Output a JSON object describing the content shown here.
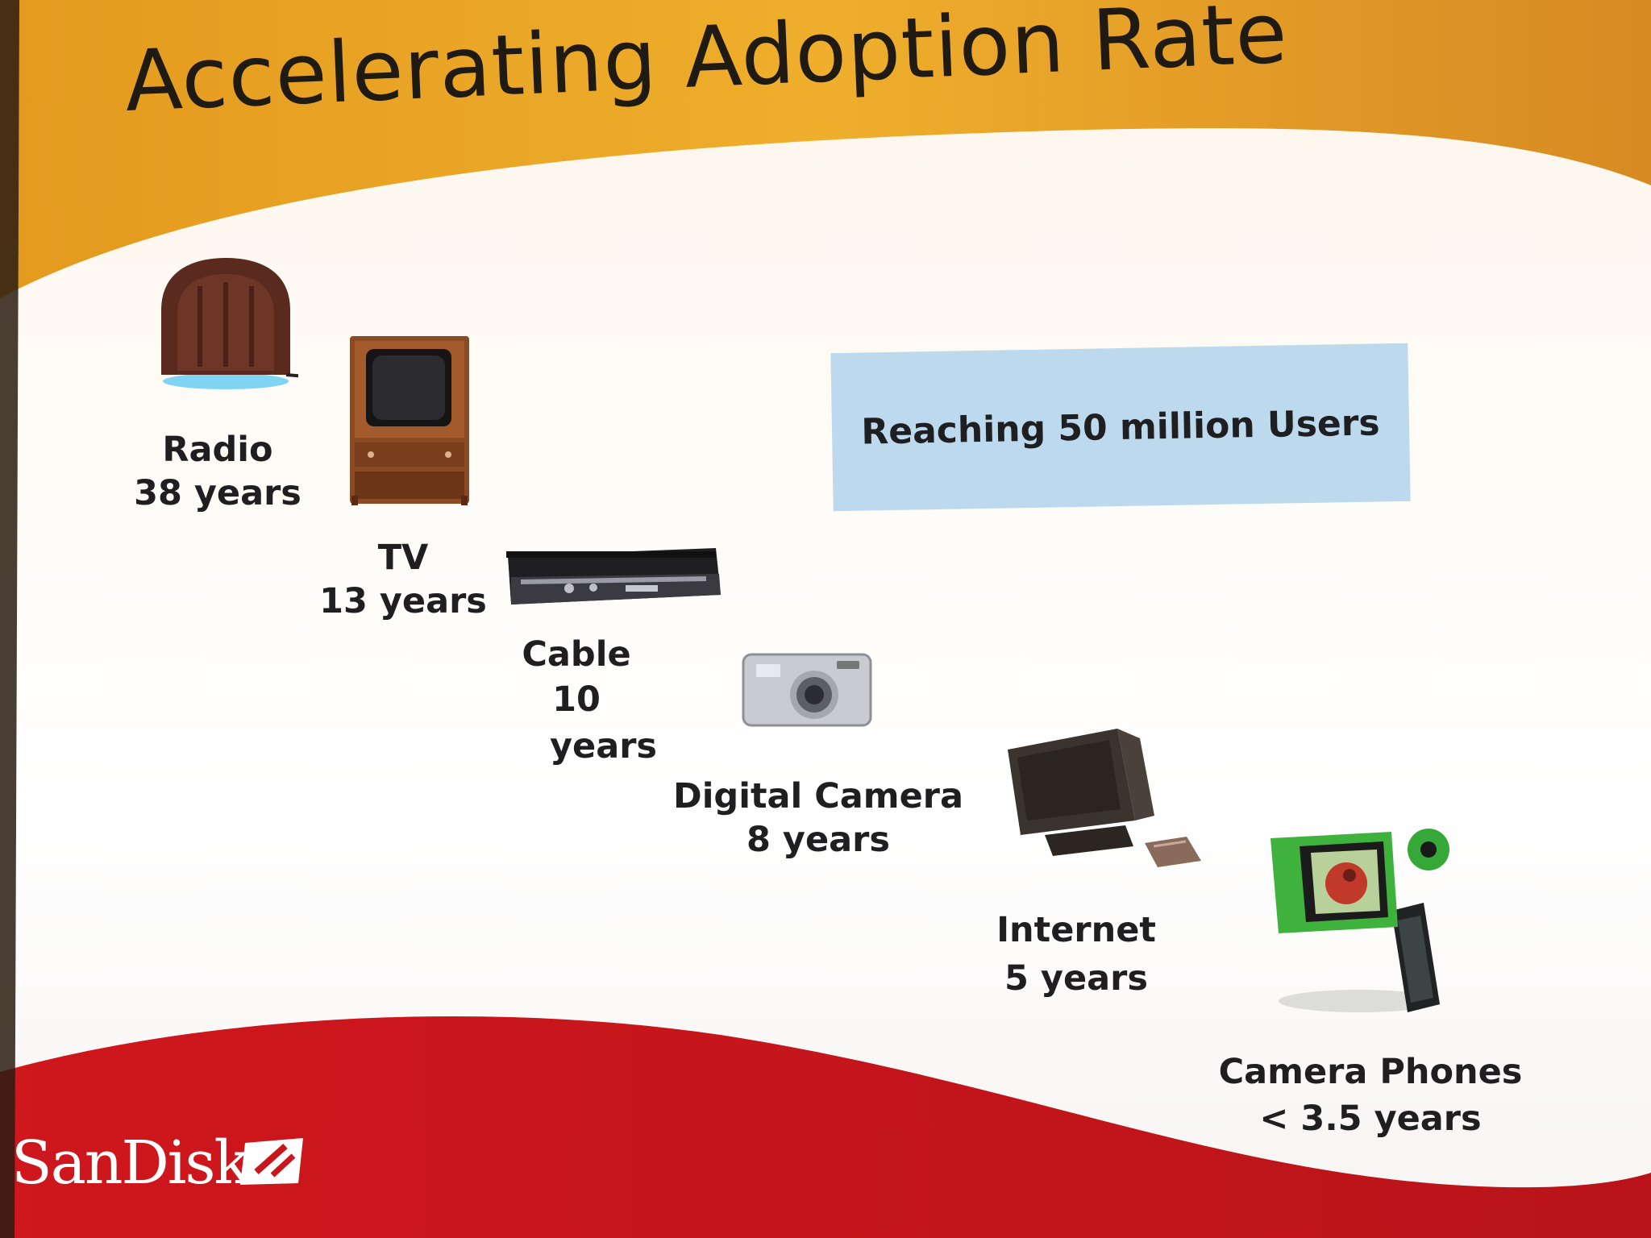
{
  "slide": {
    "title": "Accelerating Adoption Rate",
    "callout": "Reaching 50 million Users",
    "colors": {
      "top_band": "#e9a321",
      "bottom_band": "#d11a1f",
      "callout_bg": "#bcd9ee",
      "text": "#1f1f22"
    },
    "items": [
      {
        "name": "Radio",
        "duration": "38 years",
        "icon": "radio-icon"
      },
      {
        "name": "TV",
        "duration": "13 years",
        "icon": "tv-icon"
      },
      {
        "name": "Cable",
        "duration_line1": "10",
        "duration_line2": "years",
        "icon": "cable-box-icon"
      },
      {
        "name": "Digital Camera",
        "duration": "8 years",
        "icon": "camera-icon"
      },
      {
        "name": "Internet",
        "duration": "5 years",
        "icon": "computer-icon"
      },
      {
        "name": "Camera Phones",
        "duration": "< 3.5 years",
        "icon": "camera-phone-icon"
      }
    ],
    "logo": {
      "text": "SanDisk",
      "icon": "sandisk-logo-icon"
    }
  }
}
